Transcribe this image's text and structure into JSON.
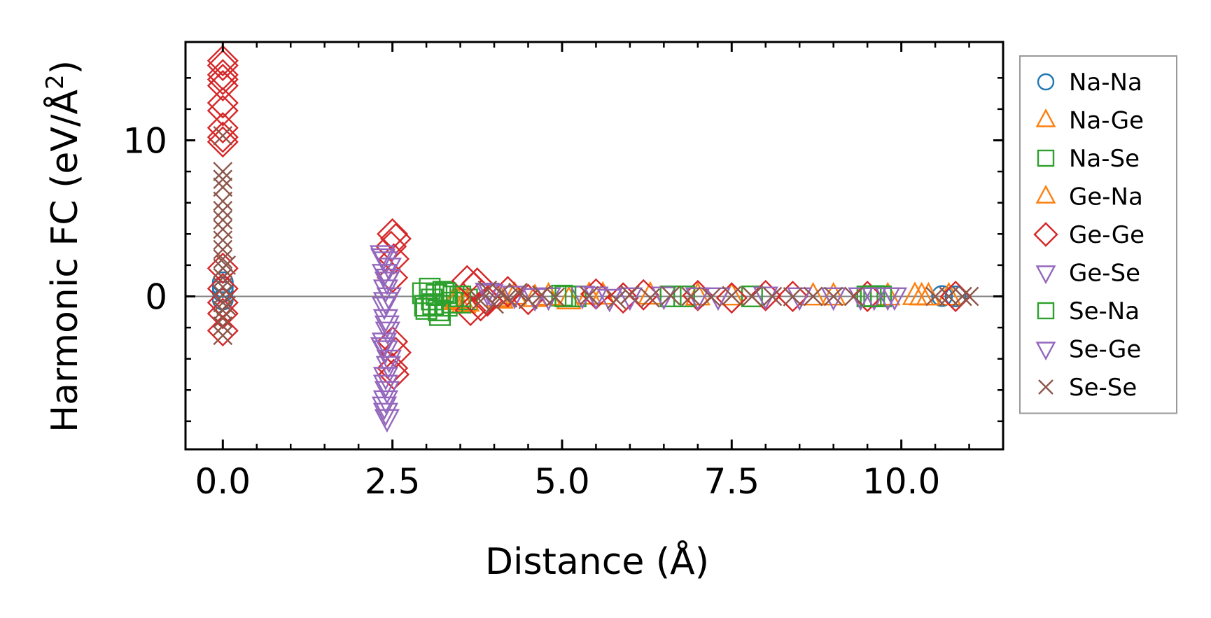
{
  "chart_data": {
    "type": "scatter",
    "xlabel": "Distance (Å)",
    "ylabel_main": "Harmonic FC (eV/Å",
    "ylabel_sup": "2",
    "ylabel_close": ")",
    "xlim": [
      -0.55,
      11.5
    ],
    "ylim": [
      -9.8,
      16.3
    ],
    "xticks": [
      0,
      2.5,
      5,
      7.5,
      10
    ],
    "xtick_labels": [
      "0.0",
      "2.5",
      "5.0",
      "7.5",
      "10.0"
    ],
    "yticks": [
      0,
      10
    ],
    "ytick_labels": [
      "0",
      "10"
    ],
    "xminor_step": 0.5,
    "yminor_step": 2,
    "zero_line": 0,
    "legend": {
      "position": "outside-right"
    },
    "series": [
      {
        "name": "Na-Na",
        "color": "#1f77b4",
        "marker": "circle",
        "points": [
          [
            0,
            0.9
          ],
          [
            0,
            0.3
          ],
          [
            0,
            -0.2
          ],
          [
            0,
            0.6
          ],
          [
            10.6,
            0.02
          ],
          [
            10.8,
            0.0
          ]
        ]
      },
      {
        "name": "Na-Ge",
        "color": "#ff7f0e",
        "marker": "triangle-up",
        "points": [
          [
            3.4,
            -0.3
          ],
          [
            3.55,
            -0.5
          ],
          [
            4.1,
            -0.2
          ],
          [
            4.3,
            0.05
          ],
          [
            4.6,
            -0.1
          ],
          [
            5.1,
            -0.25
          ],
          [
            5.4,
            0.05
          ],
          [
            6.3,
            0.05
          ],
          [
            7.5,
            0.0
          ],
          [
            8.7,
            0.0
          ],
          [
            9.8,
            0.0
          ],
          [
            10.2,
            0.02
          ],
          [
            10.4,
            0.0
          ],
          [
            10.7,
            0.0
          ]
        ]
      },
      {
        "name": "Na-Se",
        "color": "#2ca02c",
        "marker": "square",
        "points": [
          [
            2.95,
            0.2
          ],
          [
            3.0,
            -0.8
          ],
          [
            3.05,
            0.5
          ],
          [
            3.1,
            -0.5
          ],
          [
            3.15,
            0.1
          ],
          [
            3.2,
            -1.2
          ],
          [
            3.25,
            0.3
          ],
          [
            3.3,
            -0.6
          ],
          [
            3.4,
            0.0
          ],
          [
            3.5,
            -0.4
          ],
          [
            3.6,
            -0.2
          ],
          [
            5.0,
            0.05
          ],
          [
            5.2,
            0.0
          ],
          [
            6.6,
            0.0
          ],
          [
            7.8,
            0.0
          ],
          [
            9.5,
            0.0
          ],
          [
            9.6,
            0.02
          ],
          [
            9.7,
            0.0
          ]
        ]
      },
      {
        "name": "Ge-Na",
        "color": "#ff7f0e",
        "marker": "triangle-up",
        "points": [
          [
            3.45,
            -0.2
          ],
          [
            3.6,
            -0.4
          ],
          [
            4.05,
            -0.1
          ],
          [
            4.8,
            0.0
          ],
          [
            5.6,
            0.05
          ],
          [
            7.0,
            0.0
          ],
          [
            9.0,
            0.0
          ],
          [
            10.3,
            0.0
          ]
        ]
      },
      {
        "name": "Ge-Ge",
        "color": "#d62728",
        "marker": "diamond",
        "points": [
          [
            0,
            15.1
          ],
          [
            0,
            14.8
          ],
          [
            0,
            14.2
          ],
          [
            0,
            13.9
          ],
          [
            0,
            13.5
          ],
          [
            0,
            12.4
          ],
          [
            0,
            11.9
          ],
          [
            0,
            10.8
          ],
          [
            0,
            10.2
          ],
          [
            0,
            9.9
          ],
          [
            0,
            1.8
          ],
          [
            0,
            0.5
          ],
          [
            0,
            -0.4
          ],
          [
            0,
            -1.1
          ],
          [
            0,
            -2.2
          ],
          [
            2.5,
            4.0
          ],
          [
            2.55,
            3.7
          ],
          [
            2.48,
            3.2
          ],
          [
            2.52,
            2.4
          ],
          [
            2.5,
            1.2
          ],
          [
            2.5,
            -2.9
          ],
          [
            2.55,
            -3.6
          ],
          [
            2.5,
            -4.6
          ],
          [
            2.52,
            -5.0
          ],
          [
            3.6,
            1.0
          ],
          [
            3.75,
            0.85
          ],
          [
            3.7,
            0.6
          ],
          [
            3.65,
            -0.9
          ],
          [
            3.8,
            -0.6
          ],
          [
            3.9,
            -0.3
          ],
          [
            4.2,
            0.3
          ],
          [
            4.5,
            -0.2
          ],
          [
            5.5,
            0.15
          ],
          [
            5.9,
            -0.1
          ],
          [
            6.2,
            0.1
          ],
          [
            7.0,
            0.05
          ],
          [
            7.5,
            -0.1
          ],
          [
            8.0,
            0.05
          ],
          [
            8.4,
            0.0
          ],
          [
            9.5,
            0.0
          ],
          [
            10.8,
            0.0
          ]
        ]
      },
      {
        "name": "Ge-Se",
        "color": "#9467bd",
        "marker": "triangle-down",
        "points": [
          [
            2.35,
            2.7
          ],
          [
            2.4,
            2.3
          ],
          [
            2.45,
            1.9
          ],
          [
            2.38,
            1.5
          ],
          [
            2.42,
            1.0
          ],
          [
            2.4,
            0.5
          ],
          [
            2.45,
            0.0
          ],
          [
            2.38,
            -0.6
          ],
          [
            2.4,
            -1.4
          ],
          [
            2.43,
            -2.2
          ],
          [
            2.38,
            -2.9
          ],
          [
            2.4,
            -3.4
          ],
          [
            2.45,
            -4.0
          ],
          [
            2.4,
            -5.1
          ],
          [
            2.42,
            -6.0
          ],
          [
            2.4,
            -6.6
          ],
          [
            2.38,
            -7.0
          ],
          [
            2.4,
            -7.4
          ],
          [
            2.42,
            -7.8
          ],
          [
            3.9,
            0.3
          ],
          [
            4.3,
            0.1
          ],
          [
            4.8,
            0.0
          ],
          [
            5.3,
            0.1
          ],
          [
            5.7,
            -0.1
          ],
          [
            6.5,
            0.05
          ],
          [
            7.3,
            0.0
          ],
          [
            8.0,
            0.05
          ],
          [
            9.0,
            0.0
          ],
          [
            9.6,
            0.0
          ],
          [
            9.9,
            0.0
          ]
        ]
      },
      {
        "name": "Se-Na",
        "color": "#2ca02c",
        "marker": "square",
        "points": [
          [
            2.98,
            -0.6
          ],
          [
            3.08,
            -0.2
          ],
          [
            3.18,
            -0.9
          ],
          [
            3.28,
            0.2
          ],
          [
            3.38,
            -0.4
          ],
          [
            3.5,
            0.0
          ],
          [
            5.05,
            0.0
          ],
          [
            6.8,
            0.0
          ],
          [
            9.55,
            0.0
          ]
        ]
      },
      {
        "name": "Se-Ge",
        "color": "#9467bd",
        "marker": "triangle-down",
        "points": [
          [
            2.36,
            2.5
          ],
          [
            2.44,
            1.2
          ],
          [
            2.4,
            -0.3
          ],
          [
            2.42,
            -1.8
          ],
          [
            2.36,
            -3.2
          ],
          [
            2.44,
            -4.4
          ],
          [
            2.4,
            -5.6
          ],
          [
            3.95,
            0.2
          ],
          [
            4.6,
            -0.05
          ],
          [
            5.5,
            0.05
          ],
          [
            6.0,
            0.0
          ],
          [
            7.0,
            0.0
          ],
          [
            8.5,
            0.0
          ],
          [
            9.4,
            0.0
          ],
          [
            9.8,
            0.0
          ]
        ]
      },
      {
        "name": "Se-Se",
        "color": "#8c564b",
        "marker": "x",
        "points": [
          [
            0,
            10.3
          ],
          [
            0,
            8.0
          ],
          [
            0,
            7.5
          ],
          [
            0,
            7.0
          ],
          [
            0,
            6.1
          ],
          [
            0,
            5.5
          ],
          [
            0,
            4.9
          ],
          [
            0,
            4.3
          ],
          [
            0,
            3.6
          ],
          [
            0,
            3.0
          ],
          [
            0,
            2.4
          ],
          [
            0,
            1.8
          ],
          [
            0,
            1.2
          ],
          [
            0,
            0.6
          ],
          [
            0,
            0.1
          ],
          [
            0,
            -0.4
          ],
          [
            0,
            -0.9
          ],
          [
            0,
            -1.4
          ],
          [
            0,
            -1.9
          ],
          [
            0,
            -2.5
          ],
          [
            0.05,
            2.0
          ],
          [
            0.05,
            -0.6
          ],
          [
            3.8,
            -0.3
          ],
          [
            3.9,
            0.4
          ],
          [
            4.0,
            -0.5
          ],
          [
            4.1,
            0.2
          ],
          [
            4.2,
            -0.1
          ],
          [
            4.35,
            0.25
          ],
          [
            4.5,
            -0.2
          ],
          [
            4.7,
            0.1
          ],
          [
            4.9,
            -0.05
          ],
          [
            5.4,
            0.05
          ],
          [
            5.8,
            -0.2
          ],
          [
            6.0,
            0.1
          ],
          [
            6.3,
            -0.1
          ],
          [
            6.6,
            0.05
          ],
          [
            6.9,
            0.0
          ],
          [
            7.2,
            -0.05
          ],
          [
            7.5,
            0.05
          ],
          [
            7.8,
            0.0
          ],
          [
            8.1,
            0.0
          ],
          [
            8.4,
            -0.02
          ],
          [
            8.7,
            0.0
          ],
          [
            9.0,
            0.0
          ],
          [
            9.3,
            0.0
          ],
          [
            10.5,
            0.0
          ],
          [
            10.7,
            0.0
          ],
          [
            10.9,
            0.0
          ],
          [
            11.0,
            0.0
          ]
        ]
      }
    ]
  }
}
